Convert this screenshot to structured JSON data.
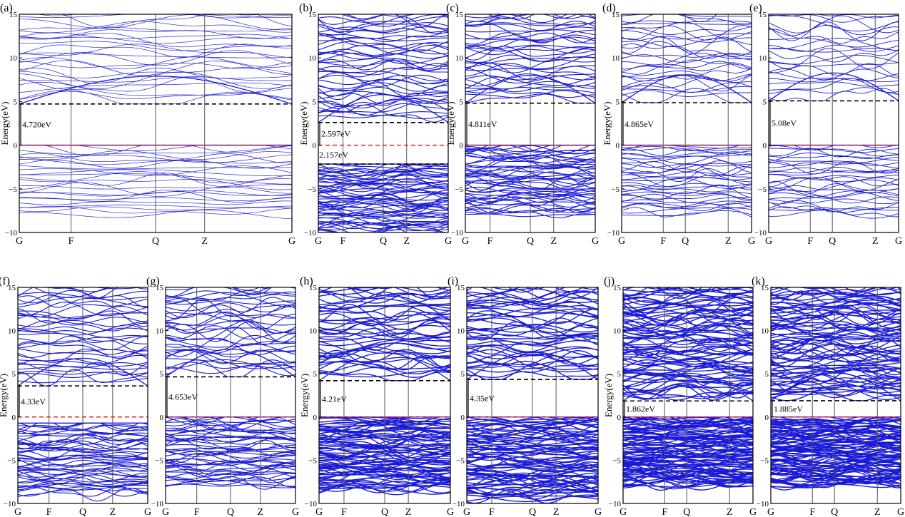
{
  "chart_data": [
    {
      "id": "a",
      "type": "line",
      "panel_label": "(a)",
      "ylabel": "Energy(eV)",
      "ylim": [
        -10,
        15
      ],
      "yticks": [
        -10,
        -5,
        0,
        5,
        10,
        15
      ],
      "kpoints": [
        "G",
        "F",
        "Q",
        "Z",
        "G"
      ],
      "kpos": [
        0,
        0.19,
        0.5,
        0.68,
        1
      ],
      "fermi_level": 0,
      "gap_label": "4.720eV",
      "gap_value": 4.72,
      "cbm": 4.72,
      "vbm": 0,
      "bands": {
        "vb_range": [
          -8,
          0
        ],
        "vb_count": 26,
        "cb_range": [
          4.72,
          15
        ],
        "cb_count": 30,
        "density": "low"
      }
    },
    {
      "id": "b",
      "type": "line",
      "panel_label": "(b)",
      "ylabel": "Energy(eV)",
      "ylim": [
        -10,
        15
      ],
      "yticks": [
        -10,
        -5,
        0,
        5,
        10,
        15
      ],
      "kpoints": [
        "G",
        "F",
        "Q",
        "Z",
        "G"
      ],
      "kpos": [
        0,
        0.19,
        0.5,
        0.68,
        1
      ],
      "fermi_level": 0,
      "gap_label": "2.597eV",
      "gap_value": 2.597,
      "second_gap_label": "2.157eV",
      "second_gap_value": 2.157,
      "cbm": 2.6,
      "vbm": 0,
      "lower_band_top": -2.16,
      "bands": {
        "vb_range": [
          -10,
          -2.16
        ],
        "vb_count": 60,
        "cb_range": [
          2.6,
          15
        ],
        "cb_count": 50,
        "density": "high"
      }
    },
    {
      "id": "c",
      "type": "line",
      "panel_label": "(c)",
      "ylabel": "Energy(eV)",
      "ylim": [
        -10,
        15
      ],
      "yticks": [
        -10,
        -5,
        0,
        5,
        10,
        15
      ],
      "kpoints": [
        "G",
        "F",
        "Q",
        "Z",
        "G"
      ],
      "kpos": [
        0,
        0.19,
        0.5,
        0.68,
        1
      ],
      "fermi_level": 0,
      "gap_label": "4.811eV",
      "gap_value": 4.811,
      "cbm": 4.81,
      "vbm": 0,
      "bands": {
        "vb_range": [
          -8,
          0
        ],
        "vb_count": 50,
        "cb_range": [
          4.81,
          15
        ],
        "cb_count": 40,
        "density": "high"
      }
    },
    {
      "id": "d",
      "type": "line",
      "panel_label": "(d)",
      "ylabel": "Energy(eV)",
      "ylim": [
        -10,
        15
      ],
      "yticks": [
        -10,
        -5,
        0,
        5,
        10,
        15
      ],
      "kpoints": [
        "G",
        "F",
        "Q",
        "Z",
        "G"
      ],
      "kpos": [
        0,
        0.32,
        0.49,
        0.82,
        1
      ],
      "fermi_level": 0,
      "gap_label": "4.865eV",
      "gap_value": 4.865,
      "cbm": 4.87,
      "vbm": 0,
      "bands": {
        "vb_range": [
          -8,
          0
        ],
        "vb_count": 34,
        "cb_range": [
          4.87,
          15
        ],
        "cb_count": 32,
        "density": "mid"
      }
    },
    {
      "id": "e",
      "type": "line",
      "panel_label": "(e)",
      "ylabel": "",
      "ylim": [
        -10,
        15
      ],
      "yticks": [
        -10,
        -5,
        0,
        5,
        10,
        15
      ],
      "kpoints": [
        "G",
        "F",
        "Q",
        "Z",
        "G"
      ],
      "kpos": [
        0,
        0.32,
        0.49,
        0.82,
        1
      ],
      "fermi_level": 0,
      "gap_label": "5.08eV",
      "gap_value": 5.08,
      "cbm": 5.08,
      "vbm": 0,
      "bands": {
        "vb_range": [
          -8,
          0
        ],
        "vb_count": 30,
        "cb_range": [
          5.08,
          15
        ],
        "cb_count": 26,
        "density": "mid"
      }
    },
    {
      "id": "f",
      "type": "line",
      "panel_label": "(f)",
      "ylabel": "Energy(eV)",
      "ylim": [
        -10,
        15
      ],
      "yticks": [
        -10,
        -5,
        0,
        5,
        10,
        15
      ],
      "kpoints": [
        "G",
        "F",
        "Q",
        "Z",
        "G"
      ],
      "kpos": [
        0,
        0.24,
        0.5,
        0.73,
        1
      ],
      "fermi_level": 0,
      "gap_label": "4.33eV",
      "gap_value": 4.33,
      "cbm": 3.6,
      "vbm": 0,
      "bands": {
        "vb_range": [
          -9,
          -0.7
        ],
        "vb_count": 50,
        "cb_range": [
          3.6,
          15
        ],
        "cb_count": 40,
        "density": "high"
      }
    },
    {
      "id": "g",
      "type": "line",
      "panel_label": "(g)",
      "ylabel": "",
      "ylim": [
        -10,
        15
      ],
      "yticks": [
        -10,
        -5,
        0,
        5,
        10,
        15
      ],
      "kpoints": [
        "G",
        "F",
        "Q",
        "Z",
        "G"
      ],
      "kpos": [
        0,
        0.24,
        0.5,
        0.73,
        1
      ],
      "fermi_level": 0,
      "gap_label": "4.653eV",
      "gap_value": 4.653,
      "cbm": 4.65,
      "vbm": 0,
      "bands": {
        "vb_range": [
          -8,
          0
        ],
        "vb_count": 48,
        "cb_range": [
          4.65,
          15
        ],
        "cb_count": 40,
        "density": "high"
      }
    },
    {
      "id": "h",
      "type": "line",
      "panel_label": "(h)",
      "ylabel": "Energy(eV)",
      "ylim": [
        -10,
        15
      ],
      "yticks": [
        -10,
        -5,
        0,
        5,
        10,
        15
      ],
      "kpoints": [
        "G",
        "F",
        "Q",
        "Z",
        "G"
      ],
      "kpos": [
        0,
        0.19,
        0.5,
        0.68,
        1
      ],
      "fermi_level": 0,
      "gap_label": "4.21eV",
      "gap_value": 4.21,
      "cbm": 4.21,
      "vbm": 0,
      "bands": {
        "vb_range": [
          -8.5,
          0
        ],
        "vb_count": 80,
        "cb_range": [
          4.21,
          15
        ],
        "cb_count": 50,
        "density": "very-high"
      }
    },
    {
      "id": "i",
      "type": "line",
      "panel_label": "(i)",
      "ylabel": "",
      "ylim": [
        -10,
        15
      ],
      "yticks": [
        -10,
        -5,
        0,
        5,
        10,
        15
      ],
      "kpoints": [
        "G",
        "F",
        "Q",
        "Z",
        "G"
      ],
      "kpos": [
        0,
        0.19,
        0.5,
        0.68,
        1
      ],
      "fermi_level": 0,
      "gap_label": "4.35eV",
      "gap_value": 4.35,
      "cbm": 4.35,
      "vbm": 0,
      "bands": {
        "vb_range": [
          -9.5,
          0
        ],
        "vb_count": 80,
        "cb_range": [
          4.35,
          15
        ],
        "cb_count": 50,
        "density": "very-high"
      }
    },
    {
      "id": "j",
      "type": "line",
      "panel_label": "(j)",
      "ylabel": "Energy(eV)",
      "ylim": [
        -10,
        15
      ],
      "yticks": [
        -10,
        -5,
        0,
        5,
        10,
        15
      ],
      "kpoints": [
        "G",
        "F",
        "Q",
        "Z",
        "G"
      ],
      "kpos": [
        0,
        0.32,
        0.49,
        0.82,
        1
      ],
      "fermi_level": 0,
      "gap_label": "1.862eV",
      "gap_value": 1.862,
      "cbm": 1.86,
      "vbm": 0,
      "bands": {
        "vb_range": [
          -8,
          0
        ],
        "vb_count": 100,
        "cb_range": [
          1.86,
          15
        ],
        "cb_count": 90,
        "density": "very-high"
      }
    },
    {
      "id": "k",
      "type": "line",
      "panel_label": "(k)",
      "ylabel": "",
      "ylim": [
        -10,
        15
      ],
      "yticks": [
        -10,
        -5,
        0,
        5,
        10,
        15
      ],
      "kpoints": [
        "G",
        "F",
        "Q",
        "Z",
        "G"
      ],
      "kpos": [
        0,
        0.32,
        0.49,
        0.82,
        1
      ],
      "fermi_level": 0,
      "gap_label": "1.885eV",
      "gap_value": 1.885,
      "cbm": 1.89,
      "vbm": 0,
      "bands": {
        "vb_range": [
          -8,
          0
        ],
        "vb_count": 100,
        "cb_range": [
          1.89,
          15
        ],
        "cb_count": 90,
        "density": "very-high"
      }
    }
  ],
  "colors": {
    "bands": "#1a1ad6",
    "fermi": "#e0201a",
    "gap_guide": "#000000",
    "kline": "#555555"
  }
}
